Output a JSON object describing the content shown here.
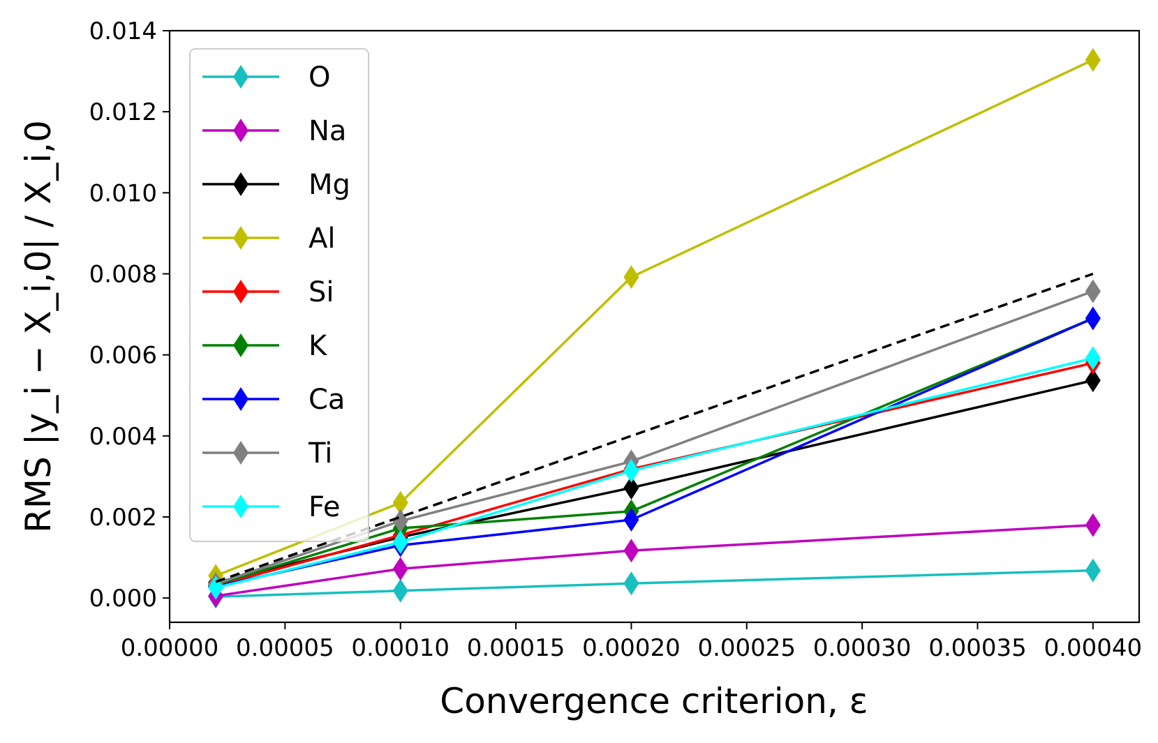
{
  "chart_data": {
    "type": "line",
    "title": "",
    "xlabel": "Convergence criterion, ε",
    "ylabel": "RMS |y_i − X_i,0| / X_i,0",
    "xlim": [
      0.0,
      0.00042
    ],
    "ylim": [
      -0.0006,
      0.014
    ],
    "xticks": [
      0.0,
      5e-05,
      0.0001,
      0.00015,
      0.0002,
      0.00025,
      0.0003,
      0.00035,
      0.0004
    ],
    "xtick_labels": [
      "0.00000",
      "0.00005",
      "0.00010",
      "0.00015",
      "0.00020",
      "0.00025",
      "0.00030",
      "0.00035",
      "0.00040"
    ],
    "yticks": [
      0.0,
      0.002,
      0.004,
      0.006,
      0.008,
      0.01,
      0.012,
      0.014
    ],
    "ytick_labels": [
      "0.000",
      "0.002",
      "0.004",
      "0.006",
      "0.008",
      "0.010",
      "0.012",
      "0.014"
    ],
    "legend_position": "top-left",
    "x": [
      2e-05,
      0.0001,
      0.0002,
      0.0004
    ],
    "series": [
      {
        "name": "O",
        "color": "#17bfbf",
        "values": [
          3e-05,
          0.00018,
          0.00036,
          0.00068
        ]
      },
      {
        "name": "Na",
        "color": "#bf00bf",
        "values": [
          5e-05,
          0.00072,
          0.00117,
          0.0018
        ]
      },
      {
        "name": "Mg",
        "color": "#000000",
        "values": [
          0.00038,
          0.0015,
          0.00272,
          0.00537
        ]
      },
      {
        "name": "Al",
        "color": "#bfbf00",
        "values": [
          0.00055,
          0.00235,
          0.00792,
          0.01328
        ]
      },
      {
        "name": "Si",
        "color": "#ff0000",
        "values": [
          0.0003,
          0.00155,
          0.00318,
          0.0058
        ]
      },
      {
        "name": "K",
        "color": "#008000",
        "values": [
          0.00033,
          0.00172,
          0.00214,
          0.0069
        ]
      },
      {
        "name": "Ca",
        "color": "#0000ff",
        "values": [
          0.00028,
          0.0013,
          0.00193,
          0.0069
        ]
      },
      {
        "name": "Ti",
        "color": "#808080",
        "values": [
          0.00035,
          0.0019,
          0.00337,
          0.00757
        ]
      },
      {
        "name": "Fe",
        "color": "#00ffff",
        "values": [
          0.00025,
          0.00138,
          0.00314,
          0.00592
        ]
      }
    ],
    "reference_line": {
      "name": "reference",
      "style": "dashed",
      "color": "#000000",
      "x": [
        2e-05,
        0.0004
      ],
      "values": [
        0.0004,
        0.008
      ]
    }
  }
}
